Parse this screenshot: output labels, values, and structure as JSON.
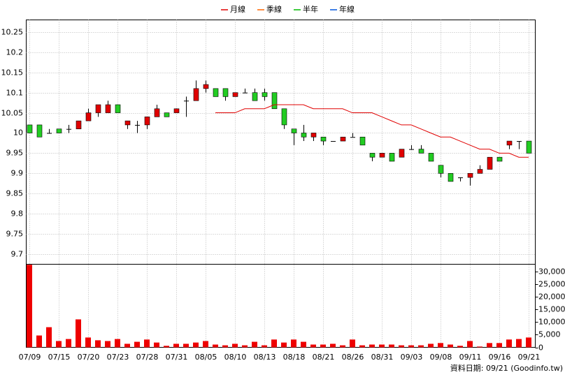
{
  "chart_data": {
    "type": "candlestick",
    "categories": [
      "07/09",
      null,
      null,
      "07/15",
      null,
      null,
      "07/20",
      null,
      null,
      "07/23",
      null,
      null,
      "07/28",
      null,
      null,
      "07/31",
      null,
      null,
      "08/05",
      null,
      null,
      "08/10",
      null,
      null,
      "08/13",
      null,
      null,
      "08/18",
      null,
      null,
      "08/21",
      null,
      null,
      "08/26",
      null,
      null,
      "08/31",
      null,
      null,
      "09/03",
      null,
      null,
      "09/08",
      null,
      null,
      "09/11",
      null,
      null,
      "09/16",
      null,
      null,
      "09/21"
    ],
    "open": [
      10.02,
      10.02,
      10.0,
      10.01,
      10.01,
      10.01,
      10.03,
      10.05,
      10.05,
      10.07,
      10.02,
      10.02,
      10.02,
      10.04,
      10.05,
      10.05,
      10.08,
      10.08,
      10.11,
      10.11,
      10.11,
      10.09,
      10.1,
      10.1,
      10.1,
      10.1,
      10.06,
      10.01,
      10.0,
      9.99,
      9.99,
      9.98,
      9.98,
      9.99,
      9.99,
      9.95,
      9.94,
      9.95,
      9.94,
      9.96,
      9.96,
      9.95,
      9.92,
      9.9,
      9.89,
      9.89,
      9.9,
      9.91,
      9.94,
      9.97,
      9.98,
      9.98
    ],
    "high": [
      10.02,
      10.02,
      10.01,
      10.01,
      10.02,
      10.03,
      10.06,
      10.07,
      10.08,
      10.07,
      10.03,
      10.03,
      10.04,
      10.07,
      10.05,
      10.06,
      10.09,
      10.13,
      10.13,
      10.11,
      10.11,
      10.1,
      10.11,
      10.11,
      10.11,
      10.1,
      10.06,
      10.01,
      10.02,
      10.0,
      9.99,
      9.98,
      9.99,
      10.0,
      9.99,
      9.95,
      9.95,
      9.95,
      9.96,
      9.97,
      9.97,
      9.95,
      9.92,
      9.9,
      9.89,
      9.9,
      9.92,
      9.94,
      9.94,
      9.98,
      9.98,
      9.98
    ],
    "low": [
      10.0,
      9.99,
      10.0,
      10.0,
      10.0,
      10.01,
      10.03,
      10.04,
      10.05,
      10.05,
      10.01,
      10.0,
      10.01,
      10.04,
      10.04,
      10.05,
      10.04,
      10.08,
      10.1,
      10.09,
      10.08,
      10.09,
      10.1,
      10.08,
      10.08,
      10.06,
      10.01,
      9.97,
      9.98,
      9.98,
      9.97,
      9.98,
      9.98,
      9.99,
      9.97,
      9.93,
      9.94,
      9.93,
      9.94,
      9.96,
      9.95,
      9.93,
      9.89,
      9.88,
      9.88,
      9.87,
      9.9,
      9.91,
      9.93,
      9.96,
      9.96,
      9.95
    ],
    "close": [
      10.0,
      9.99,
      10.0,
      10.0,
      10.01,
      10.03,
      10.05,
      10.07,
      10.07,
      10.05,
      10.03,
      10.02,
      10.04,
      10.06,
      10.04,
      10.06,
      10.08,
      10.11,
      10.12,
      10.09,
      10.09,
      10.1,
      10.1,
      10.08,
      10.09,
      10.06,
      10.02,
      10.0,
      9.99,
      10.0,
      9.98,
      9.98,
      9.99,
      9.99,
      9.97,
      9.94,
      9.95,
      9.93,
      9.96,
      9.96,
      9.95,
      9.93,
      9.9,
      9.88,
      9.89,
      9.9,
      9.91,
      9.94,
      9.93,
      9.98,
      9.98,
      9.95
    ],
    "up_color": "#e00000",
    "down_color": "#22cc22",
    "series": [
      {
        "name": "月線",
        "color": "#e00000",
        "values": [
          null,
          null,
          null,
          null,
          null,
          null,
          null,
          null,
          null,
          null,
          null,
          null,
          null,
          null,
          null,
          null,
          null,
          null,
          null,
          10.05,
          10.05,
          10.05,
          10.06,
          10.06,
          10.06,
          10.07,
          10.07,
          10.07,
          10.07,
          10.06,
          10.06,
          10.06,
          10.06,
          10.05,
          10.05,
          10.05,
          10.04,
          10.03,
          10.02,
          10.02,
          10.01,
          10.0,
          9.99,
          9.99,
          9.98,
          9.97,
          9.96,
          9.96,
          9.95,
          9.95,
          9.94,
          9.94
        ]
      },
      {
        "name": "季線",
        "color": "#ff6600",
        "values": [
          null,
          null,
          null,
          null,
          null,
          null,
          null,
          null,
          null,
          null,
          null,
          null,
          null,
          null,
          null,
          null,
          null,
          null,
          null,
          null,
          null,
          null,
          null,
          null,
          null,
          null,
          null,
          null,
          null,
          null,
          null,
          null,
          null,
          null,
          null,
          null,
          null,
          null,
          null,
          null,
          null,
          null,
          null,
          null,
          null,
          null,
          null,
          null,
          null,
          null,
          null,
          null
        ]
      },
      {
        "name": "半年",
        "color": "#00bb00",
        "values": [
          null,
          null,
          null,
          null,
          null,
          null,
          null,
          null,
          null,
          null,
          null,
          null,
          null,
          null,
          null,
          null,
          null,
          null,
          null,
          null,
          null,
          null,
          null,
          null,
          null,
          null,
          null,
          null,
          null,
          null,
          null,
          null,
          null,
          null,
          null,
          null,
          null,
          null,
          null,
          null,
          null,
          null,
          null,
          null,
          null,
          null,
          null,
          null,
          null,
          null,
          null,
          null
        ]
      },
      {
        "name": "年線",
        "color": "#0055dd",
        "values": [
          null,
          null,
          null,
          null,
          null,
          null,
          null,
          null,
          null,
          null,
          null,
          null,
          null,
          null,
          null,
          null,
          null,
          null,
          null,
          null,
          null,
          null,
          null,
          null,
          null,
          null,
          null,
          null,
          null,
          null,
          null,
          null,
          null,
          null,
          null,
          null,
          null,
          null,
          null,
          null,
          null,
          null,
          null,
          null,
          null,
          null,
          null,
          null,
          null,
          null,
          null,
          null
        ]
      }
    ],
    "ylim": [
      9.675,
      10.28
    ],
    "yticks": [
      9.7,
      9.75,
      9.8,
      9.85,
      9.9,
      9.95,
      10,
      10.05,
      10.1,
      10.15,
      10.2,
      10.25
    ],
    "grid": true,
    "volume": {
      "color": "#ee0000",
      "values": [
        32800,
        4700,
        8000,
        2500,
        3300,
        11100,
        3900,
        2800,
        2500,
        3300,
        1400,
        2200,
        3100,
        1900,
        600,
        1400,
        1400,
        1900,
        2500,
        1100,
        800,
        1400,
        800,
        2200,
        800,
        3100,
        1900,
        3100,
        2200,
        1100,
        1100,
        1400,
        800,
        3100,
        800,
        1100,
        1100,
        1100,
        800,
        800,
        800,
        1400,
        1700,
        1100,
        600,
        2500,
        300,
        1700,
        1700,
        3100,
        3300,
        3900
      ],
      "ylim": [
        0,
        33000
      ],
      "yticks": [
        0,
        {
          "value": 5000,
          "label": "5,000"
        },
        {
          "value": 10000,
          "label": "10,000"
        },
        {
          "value": 15000,
          "label": "15,000"
        },
        {
          "value": 20000,
          "label": "20,000"
        },
        {
          "value": 25000,
          "label": "25,000"
        },
        {
          "value": 30000,
          "label": "30,000"
        }
      ]
    },
    "source": "資料日期: 09/21  (Goodinfo.tw)"
  }
}
